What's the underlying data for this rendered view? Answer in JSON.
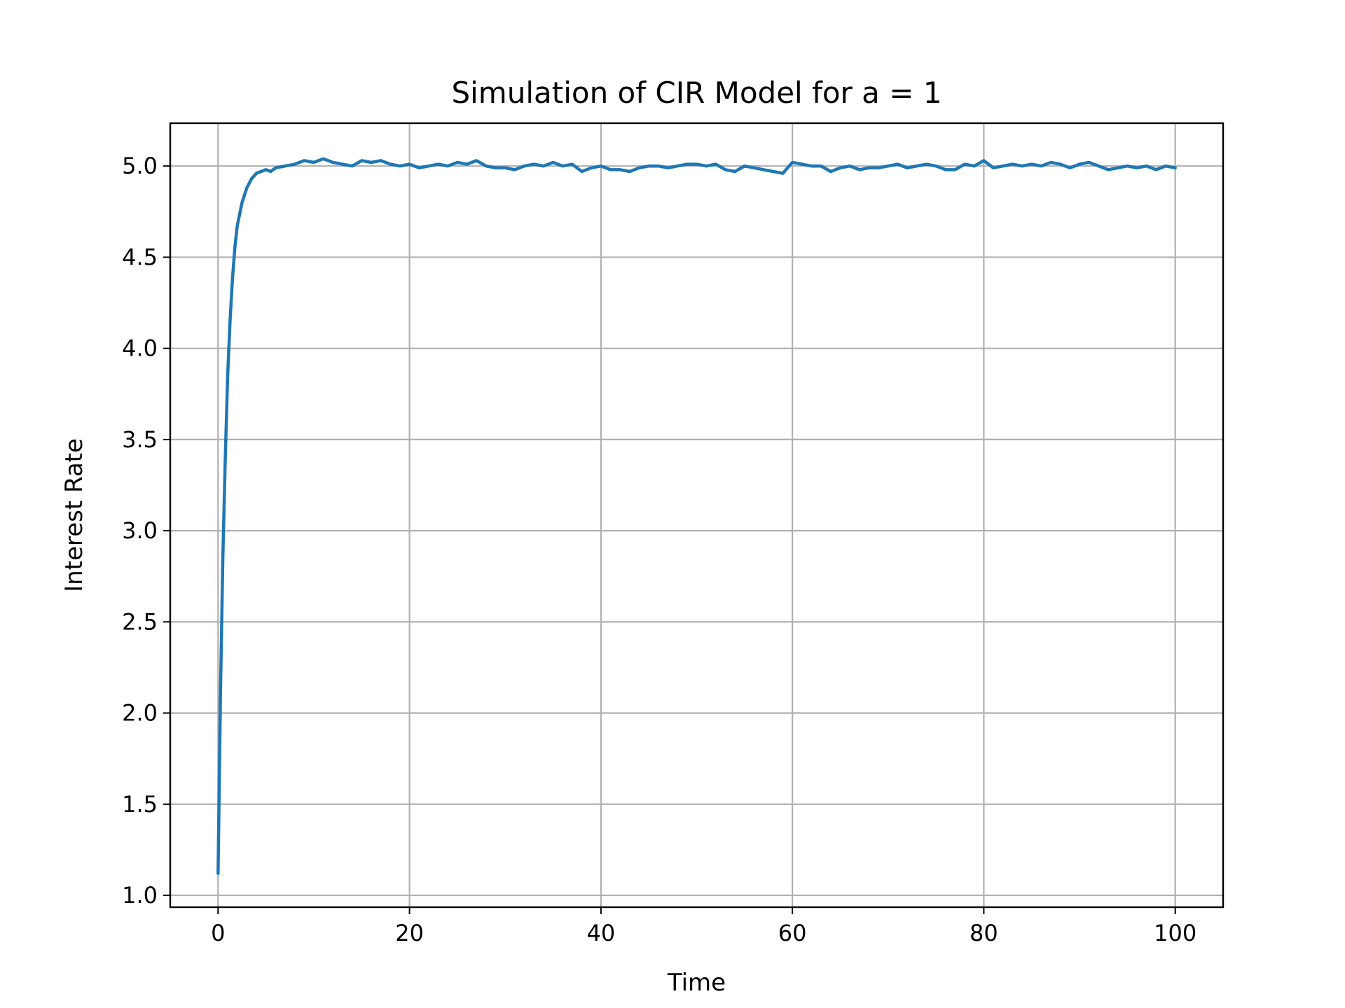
{
  "chart_data": {
    "type": "line",
    "title": "Simulation of CIR Model for a = 1",
    "xlabel": "Time",
    "ylabel": "Interest Rate",
    "xlim": [
      -5,
      105
    ],
    "ylim": [
      0.935,
      5.235
    ],
    "xticks": [
      0,
      20,
      40,
      60,
      80,
      100
    ],
    "xtick_labels": [
      "0",
      "20",
      "40",
      "60",
      "80",
      "100"
    ],
    "yticks": [
      1.0,
      1.5,
      2.0,
      2.5,
      3.0,
      3.5,
      4.0,
      4.5,
      5.0
    ],
    "ytick_labels": [
      "1.0",
      "1.5",
      "2.0",
      "2.5",
      "3.0",
      "3.5",
      "4.0",
      "4.5",
      "5.0"
    ],
    "grid": true,
    "series": [
      {
        "color": "#1f77b4",
        "x": [
          0,
          0.25,
          0.5,
          0.75,
          1,
          1.25,
          1.5,
          1.75,
          2,
          2.5,
          3,
          3.5,
          4,
          4.5,
          5,
          5.5,
          6,
          7,
          8,
          9,
          10,
          11,
          12,
          13,
          14,
          15,
          16,
          17,
          18,
          19,
          20,
          21,
          22,
          23,
          24,
          25,
          26,
          27,
          28,
          29,
          30,
          31,
          32,
          33,
          34,
          35,
          36,
          37,
          38,
          39,
          40,
          41,
          42,
          43,
          44,
          45,
          46,
          47,
          48,
          49,
          50,
          51,
          52,
          53,
          54,
          55,
          56,
          57,
          58,
          59,
          60,
          61,
          62,
          63,
          64,
          65,
          66,
          67,
          68,
          69,
          70,
          71,
          72,
          73,
          74,
          75,
          76,
          77,
          78,
          79,
          80,
          81,
          82,
          83,
          84,
          85,
          86,
          87,
          88,
          89,
          90,
          91,
          92,
          93,
          94,
          95,
          96,
          97,
          98,
          99,
          100
        ],
        "y": [
          1.12,
          2.1,
          2.85,
          3.4,
          3.85,
          4.15,
          4.38,
          4.55,
          4.67,
          4.8,
          4.88,
          4.93,
          4.96,
          4.97,
          4.98,
          4.97,
          4.99,
          5.0,
          5.01,
          5.03,
          5.02,
          5.04,
          5.02,
          5.01,
          5.0,
          5.03,
          5.02,
          5.03,
          5.01,
          5.0,
          5.01,
          4.99,
          5.0,
          5.01,
          5.0,
          5.02,
          5.01,
          5.03,
          5.0,
          4.99,
          4.99,
          4.98,
          5.0,
          5.01,
          5.0,
          5.02,
          5.0,
          5.01,
          4.97,
          4.99,
          5.0,
          4.98,
          4.98,
          4.97,
          4.99,
          5.0,
          5.0,
          4.99,
          5.0,
          5.01,
          5.01,
          5.0,
          5.01,
          4.98,
          4.97,
          5.0,
          4.99,
          4.98,
          4.97,
          4.96,
          5.02,
          5.01,
          5.0,
          5.0,
          4.97,
          4.99,
          5.0,
          4.98,
          4.99,
          4.99,
          5.0,
          5.01,
          4.99,
          5.0,
          5.01,
          5.0,
          4.98,
          4.98,
          5.01,
          5.0,
          5.03,
          4.99,
          5.0,
          5.01,
          5.0,
          5.01,
          5.0,
          5.02,
          5.01,
          4.99,
          5.01,
          5.02,
          5.0,
          4.98,
          4.99,
          5.0,
          4.99,
          5.0,
          4.98,
          5.0,
          4.99
        ]
      }
    ]
  }
}
